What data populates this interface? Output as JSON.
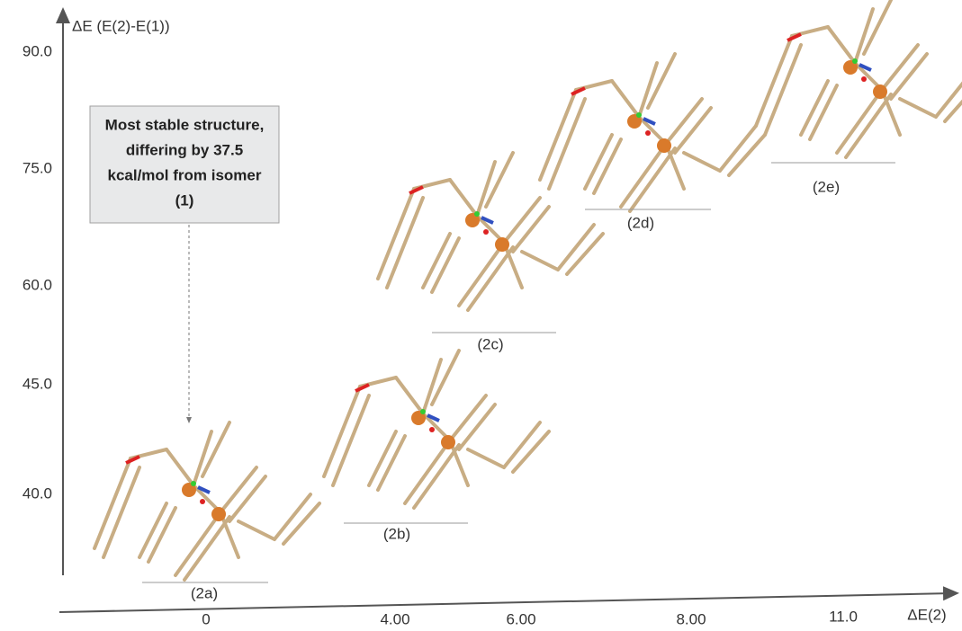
{
  "y_axis": {
    "label": "ΔE (E(2)-E(1))",
    "ticks": [
      "90.0",
      "75.0",
      "60.0",
      "45.0",
      "40.0"
    ]
  },
  "x_axis": {
    "label": "ΔE(2)",
    "ticks": [
      "0",
      "4.00",
      "6.00",
      "8.00",
      "11.0"
    ]
  },
  "annotation": {
    "lines": [
      "Most stable structure,",
      "differing by 37.5",
      "kcal/mol from isomer",
      "(1)"
    ]
  },
  "structures": [
    "(2a)",
    "(2b)",
    "(2c)",
    "(2d)",
    "(2e)"
  ]
}
